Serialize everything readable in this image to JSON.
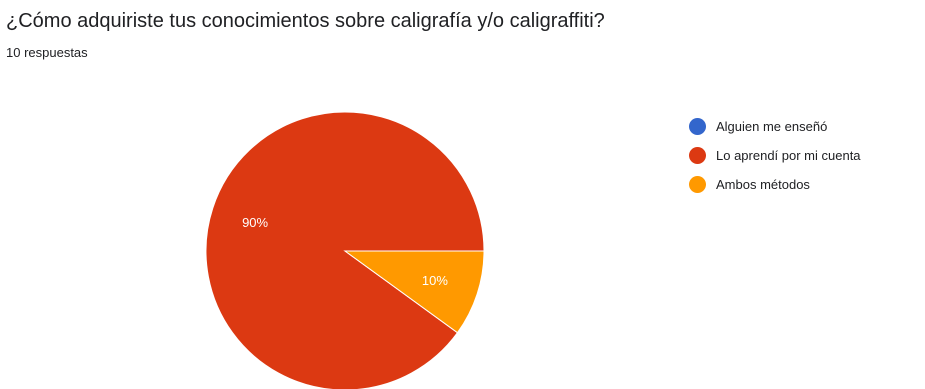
{
  "header": {
    "question": "¿Cómo adquiriste tus conocimientos sobre caligrafía y/o caligraffiti?",
    "responses": "10 respuestas"
  },
  "chart_data": {
    "type": "pie",
    "title": "¿Cómo adquiriste tus conocimientos sobre caligrafía y/o caligraffiti?",
    "categories": [
      "Alguien me enseñó",
      "Lo aprendí por mi cuenta",
      "Ambos métodos"
    ],
    "values": [
      0,
      90,
      10
    ],
    "data_labels": [
      "",
      "90%",
      "10%"
    ],
    "colors": [
      "#3366cc",
      "#dc3912",
      "#ff9900"
    ],
    "legend_position": "right"
  }
}
